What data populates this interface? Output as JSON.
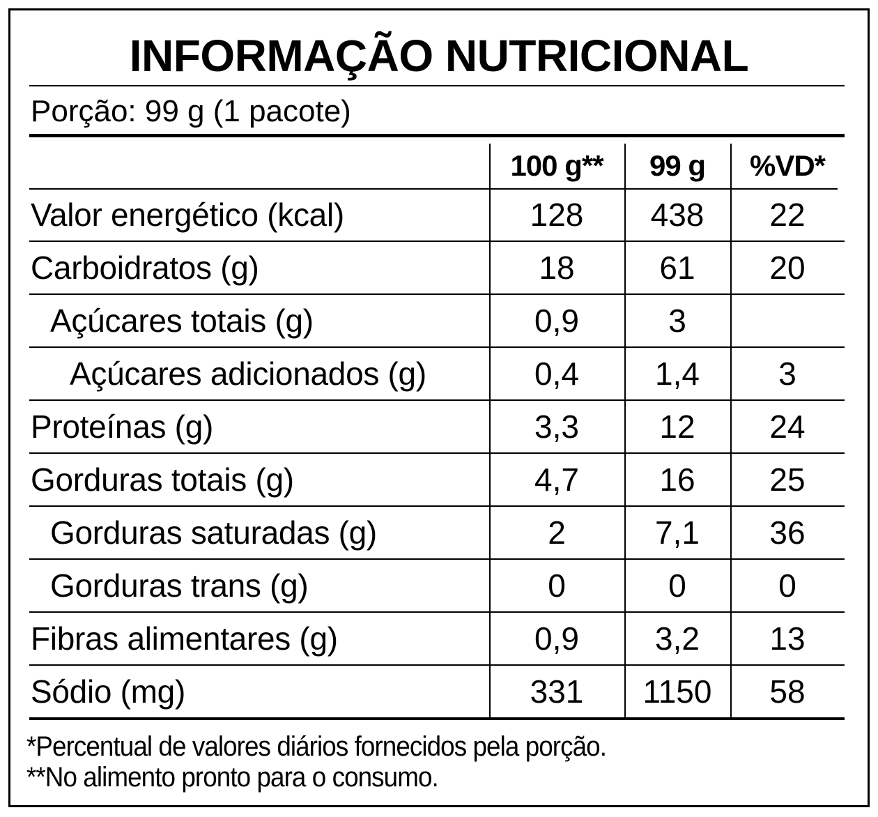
{
  "title": "INFORMAÇÃO NUTRICIONAL",
  "portion": "Porção: 99 g (1 pacote)",
  "columns": [
    "100 g**",
    "99 g",
    "%VD*"
  ],
  "rows": [
    {
      "label": "Valor energético (kcal)",
      "indent": 0,
      "values": [
        "128",
        "438",
        "22"
      ]
    },
    {
      "label": "Carboidratos (g)",
      "indent": 0,
      "values": [
        "18",
        "61",
        "20"
      ]
    },
    {
      "label": "Açúcares totais (g)",
      "indent": 1,
      "values": [
        "0,9",
        "3",
        ""
      ]
    },
    {
      "label": "Açúcares adicionados (g)",
      "indent": 2,
      "values": [
        "0,4",
        "1,4",
        "3"
      ]
    },
    {
      "label": "Proteínas (g)",
      "indent": 0,
      "values": [
        "3,3",
        "12",
        "24"
      ]
    },
    {
      "label": "Gorduras totais (g)",
      "indent": 0,
      "values": [
        "4,7",
        "16",
        "25"
      ]
    },
    {
      "label": "Gorduras saturadas (g)",
      "indent": 1,
      "values": [
        "2",
        "7,1",
        "36"
      ]
    },
    {
      "label": "Gorduras trans (g)",
      "indent": 1,
      "values": [
        "0",
        "0",
        "0"
      ]
    },
    {
      "label": "Fibras alimentares (g)",
      "indent": 0,
      "values": [
        "0,9",
        "3,2",
        "13"
      ]
    },
    {
      "label": "Sódio (mg)",
      "indent": 0,
      "values": [
        "331",
        "1150",
        "58"
      ]
    }
  ],
  "footnotes": [
    "*Percentual de valores diários fornecidos pela porção.",
    "**No alimento pronto para o consumo."
  ]
}
